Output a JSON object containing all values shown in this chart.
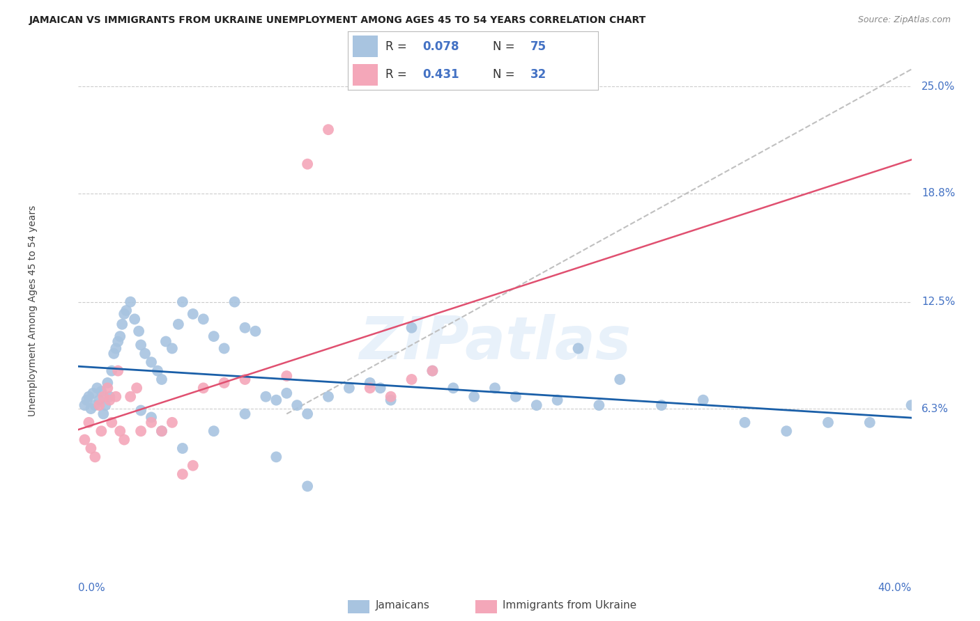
{
  "title": "JAMAICAN VS IMMIGRANTS FROM UKRAINE UNEMPLOYMENT AMONG AGES 45 TO 54 YEARS CORRELATION CHART",
  "source": "Source: ZipAtlas.com",
  "ylabel": "Unemployment Among Ages 45 to 54 years",
  "ytick_values": [
    6.3,
    12.5,
    18.8,
    25.0
  ],
  "xmin": 0.0,
  "xmax": 40.0,
  "ymin": -3.5,
  "ymax": 27.5,
  "jamaicans_color": "#a8c4e0",
  "ukraine_color": "#f4a7b9",
  "jamaicans_line_color": "#1a5fa8",
  "ukraine_line_color": "#e05070",
  "watermark": "ZIPatlas",
  "grid_color": "#cccccc",
  "bg_color": "#ffffff",
  "jamaicans_x": [
    0.3,
    0.4,
    0.5,
    0.6,
    0.7,
    0.8,
    0.9,
    1.0,
    1.1,
    1.2,
    1.3,
    1.4,
    1.5,
    1.6,
    1.7,
    1.8,
    1.9,
    2.0,
    2.1,
    2.2,
    2.3,
    2.5,
    2.7,
    2.9,
    3.0,
    3.2,
    3.5,
    3.8,
    4.0,
    4.2,
    4.5,
    4.8,
    5.0,
    5.5,
    6.0,
    6.5,
    7.0,
    7.5,
    8.0,
    8.5,
    9.0,
    9.5,
    10.0,
    10.5,
    11.0,
    12.0,
    13.0,
    14.0,
    14.5,
    15.0,
    16.0,
    17.0,
    18.0,
    19.0,
    20.0,
    21.0,
    22.0,
    23.0,
    24.0,
    25.0,
    26.0,
    28.0,
    30.0,
    32.0,
    34.0,
    36.0,
    38.0,
    40.0,
    3.0,
    3.5,
    4.0,
    5.0,
    6.5,
    8.0,
    9.5,
    11.0
  ],
  "jamaicans_y": [
    6.5,
    6.8,
    7.0,
    6.3,
    7.2,
    6.5,
    7.5,
    6.8,
    7.3,
    6.0,
    6.5,
    7.8,
    7.0,
    8.5,
    9.5,
    9.8,
    10.2,
    10.5,
    11.2,
    11.8,
    12.0,
    12.5,
    11.5,
    10.8,
    10.0,
    9.5,
    9.0,
    8.5,
    8.0,
    10.2,
    9.8,
    11.2,
    12.5,
    11.8,
    11.5,
    10.5,
    9.8,
    12.5,
    11.0,
    10.8,
    7.0,
    6.8,
    7.2,
    6.5,
    6.0,
    7.0,
    7.5,
    7.8,
    7.5,
    6.8,
    11.0,
    8.5,
    7.5,
    7.0,
    7.5,
    7.0,
    6.5,
    6.8,
    9.8,
    6.5,
    8.0,
    6.5,
    6.8,
    5.5,
    5.0,
    5.5,
    5.5,
    6.5,
    6.2,
    5.8,
    5.0,
    4.0,
    5.0,
    6.0,
    3.5,
    1.8
  ],
  "ukraine_x": [
    0.3,
    0.5,
    0.6,
    0.8,
    1.0,
    1.1,
    1.2,
    1.4,
    1.5,
    1.6,
    1.8,
    1.9,
    2.0,
    2.2,
    2.5,
    2.8,
    3.0,
    3.5,
    4.0,
    4.5,
    5.0,
    5.5,
    6.0,
    7.0,
    8.0,
    10.0,
    11.0,
    12.0,
    14.0,
    15.0,
    16.0,
    17.0
  ],
  "ukraine_y": [
    4.5,
    5.5,
    4.0,
    3.5,
    6.5,
    5.0,
    7.0,
    7.5,
    6.8,
    5.5,
    7.0,
    8.5,
    5.0,
    4.5,
    7.0,
    7.5,
    5.0,
    5.5,
    5.0,
    5.5,
    2.5,
    3.0,
    7.5,
    7.8,
    8.0,
    8.2,
    20.5,
    22.5,
    7.5,
    7.0,
    8.0,
    8.5
  ],
  "diag_x_start": 10.0,
  "diag_y_start": 6.0,
  "diag_x_end": 40.0,
  "diag_y_end": 26.0
}
